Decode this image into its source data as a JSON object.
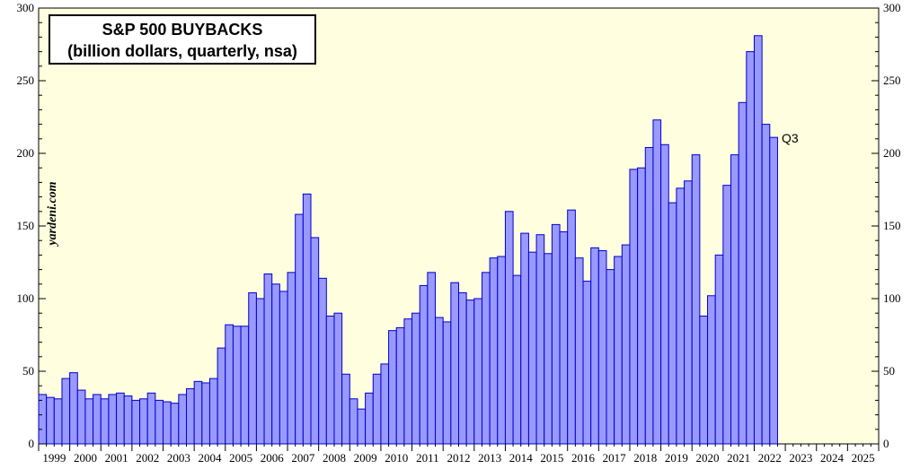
{
  "title_line1": "S&P 500 BUYBACKS",
  "title_line2": "(billion dollars, quarterly, nsa)",
  "watermark": "yardeni.com",
  "annotation": "Q3",
  "colors": {
    "plot_bg": "#ffffe0",
    "bar_fill": "#9999ff",
    "bar_stroke": "#0000cc"
  },
  "chart_data": {
    "type": "bar",
    "title": "S&P 500 BUYBACKS (billion dollars, quarterly, nsa)",
    "ylim": [
      0,
      300
    ],
    "yticks": [
      0,
      50,
      100,
      150,
      200,
      250,
      300
    ],
    "year_labels": [
      "1999",
      "2000",
      "2001",
      "2002",
      "2003",
      "2004",
      "2005",
      "2006",
      "2007",
      "2008",
      "2009",
      "2010",
      "2011",
      "2012",
      "2013",
      "2014",
      "2015",
      "2016",
      "2017",
      "2018",
      "2019",
      "2020",
      "2021",
      "2022",
      "2023",
      "2024",
      "2025"
    ],
    "quarters_per_year": 4,
    "values": [
      34,
      32,
      31,
      45,
      49,
      37,
      31,
      34,
      31,
      34,
      35,
      33,
      30,
      31,
      35,
      30,
      29,
      28,
      34,
      38,
      43,
      42,
      45,
      66,
      82,
      81,
      81,
      104,
      100,
      117,
      110,
      105,
      118,
      158,
      172,
      142,
      114,
      88,
      90,
      48,
      31,
      24,
      35,
      48,
      55,
      78,
      80,
      86,
      90,
      109,
      118,
      87,
      84,
      111,
      104,
      99,
      100,
      118,
      128,
      129,
      160,
      116,
      145,
      132,
      144,
      131,
      151,
      146,
      161,
      128,
      112,
      135,
      133,
      120,
      129,
      137,
      189,
      190,
      204,
      223,
      206,
      166,
      176,
      181,
      199,
      88,
      102,
      130,
      178,
      199,
      235,
      270,
      281,
      220,
      211
    ]
  }
}
